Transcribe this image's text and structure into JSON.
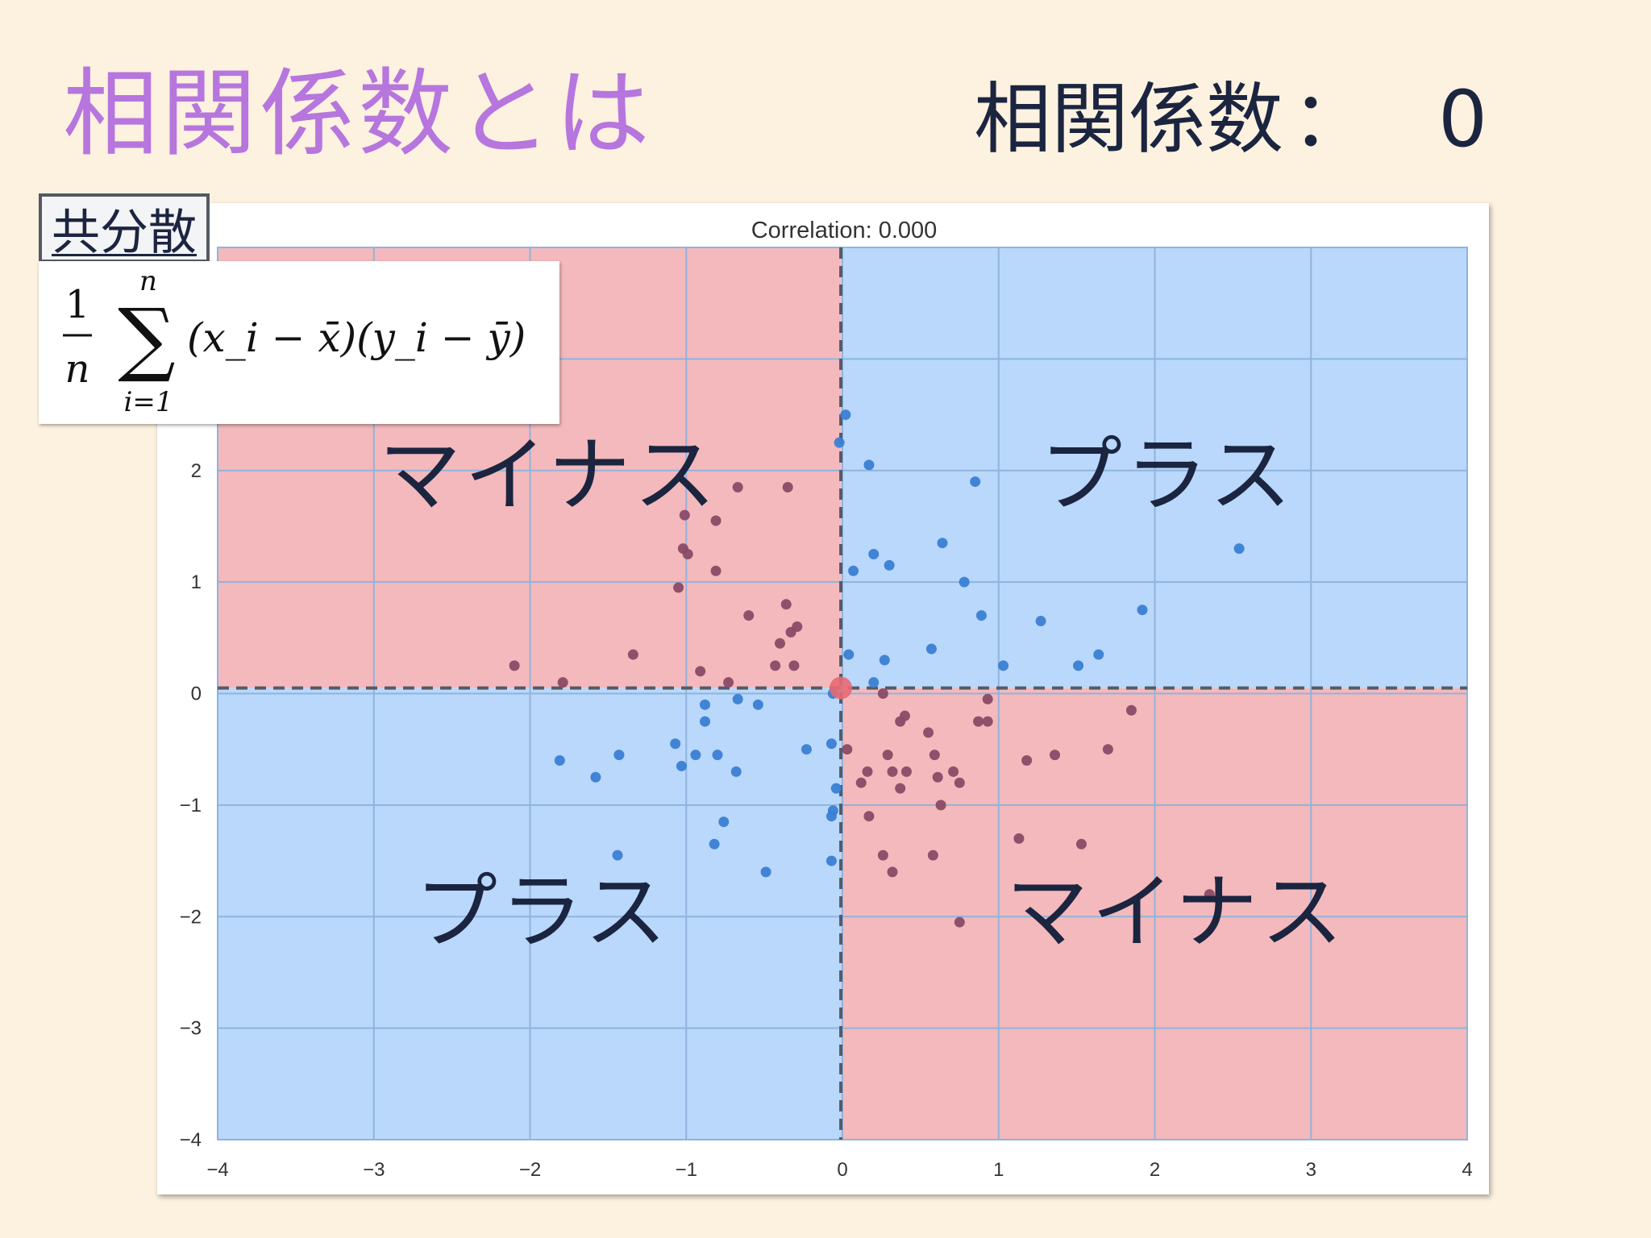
{
  "slide": {
    "title": "相関係数とは",
    "corr_heading_label": "相関係数",
    "corr_heading_sep": "：",
    "corr_heading_value": "0",
    "covariance_tag": "共分散"
  },
  "formula": {
    "frac_num": "1",
    "frac_den": "n",
    "sum_upper": "n",
    "sum_lower": "i=1",
    "sum_symbol": "∑",
    "body": "(x_i − x̄)(y_i − ȳ)"
  },
  "quadrant_labels": {
    "top_left": "マイナス",
    "top_right": "プラス",
    "bottom_left": "プラス",
    "bottom_right": "マイナス"
  },
  "colors": {
    "title": "#b676dd",
    "negative_quadrant": "#f4b9bc",
    "positive_quadrant": "#b9d8fb",
    "positive_point": "#3a7fd4",
    "negative_point": "#8a4a66",
    "center_point": "#e86a72"
  },
  "chart_data": {
    "type": "scatter",
    "title": "Correlation: 0.000",
    "xlabel": "",
    "ylabel": "",
    "xlim": [
      -4,
      4
    ],
    "ylim": [
      -4,
      4
    ],
    "x_ticks": [
      "−4",
      "−3",
      "−2",
      "−1",
      "0",
      "1",
      "2",
      "3",
      "4"
    ],
    "y_ticks": [
      "−4",
      "−3",
      "−2",
      "−1",
      "0",
      "1",
      "2"
    ],
    "grid": true,
    "mean": {
      "x": -0.01,
      "y": 0.05
    },
    "series": [
      {
        "quadrant": "positive",
        "points": [
          [
            0.02,
            2.5
          ],
          [
            -0.02,
            2.25
          ],
          [
            0.17,
            2.05
          ],
          [
            0.85,
            1.9
          ],
          [
            2.54,
            1.3
          ],
          [
            0.64,
            1.35
          ],
          [
            0.2,
            1.25
          ],
          [
            0.3,
            1.15
          ],
          [
            0.07,
            1.1
          ],
          [
            0.78,
            1.0
          ],
          [
            0.89,
            0.7
          ],
          [
            1.27,
            0.65
          ],
          [
            1.92,
            0.75
          ],
          [
            0.57,
            0.4
          ],
          [
            0.04,
            0.35
          ],
          [
            0.27,
            0.3
          ],
          [
            1.03,
            0.25
          ],
          [
            1.64,
            0.35
          ],
          [
            1.51,
            0.25
          ],
          [
            0.2,
            0.1
          ],
          [
            -0.06,
            0.0
          ],
          [
            -0.88,
            -0.1
          ],
          [
            -0.67,
            -0.05
          ],
          [
            -0.54,
            -0.1
          ],
          [
            -0.88,
            -0.25
          ],
          [
            -1.81,
            -0.6
          ],
          [
            -1.43,
            -0.55
          ],
          [
            -1.58,
            -0.75
          ],
          [
            -1.07,
            -0.45
          ],
          [
            -1.03,
            -0.65
          ],
          [
            -0.94,
            -0.55
          ],
          [
            -0.8,
            -0.55
          ],
          [
            -0.68,
            -0.7
          ],
          [
            -0.23,
            -0.5
          ],
          [
            -0.07,
            -0.45
          ],
          [
            -0.04,
            -0.85
          ],
          [
            -0.06,
            -1.05
          ],
          [
            -0.07,
            -1.1
          ],
          [
            -0.76,
            -1.15
          ],
          [
            -0.82,
            -1.35
          ],
          [
            -1.44,
            -1.45
          ],
          [
            -0.49,
            -1.6
          ],
          [
            -0.07,
            -1.5
          ]
        ]
      },
      {
        "quadrant": "negative",
        "points": [
          [
            -0.67,
            1.85
          ],
          [
            -0.35,
            1.85
          ],
          [
            -1.01,
            1.6
          ],
          [
            -0.81,
            1.55
          ],
          [
            -1.02,
            1.3
          ],
          [
            -0.99,
            1.25
          ],
          [
            -0.81,
            1.1
          ],
          [
            -1.05,
            0.95
          ],
          [
            -0.6,
            0.7
          ],
          [
            -0.36,
            0.8
          ],
          [
            -0.29,
            0.6
          ],
          [
            -0.33,
            0.55
          ],
          [
            -0.4,
            0.45
          ],
          [
            -1.34,
            0.35
          ],
          [
            -2.1,
            0.25
          ],
          [
            -0.43,
            0.25
          ],
          [
            -0.31,
            0.25
          ],
          [
            -0.91,
            0.2
          ],
          [
            -1.79,
            0.1
          ],
          [
            -0.73,
            0.1
          ],
          [
            0.26,
            0.0
          ],
          [
            0.93,
            -0.05
          ],
          [
            0.37,
            -0.25
          ],
          [
            0.4,
            -0.2
          ],
          [
            0.55,
            -0.35
          ],
          [
            0.87,
            -0.25
          ],
          [
            0.93,
            -0.25
          ],
          [
            1.85,
            -0.15
          ],
          [
            0.03,
            -0.5
          ],
          [
            0.29,
            -0.55
          ],
          [
            0.59,
            -0.55
          ],
          [
            0.16,
            -0.7
          ],
          [
            0.12,
            -0.8
          ],
          [
            0.32,
            -0.7
          ],
          [
            0.41,
            -0.7
          ],
          [
            0.61,
            -0.75
          ],
          [
            0.71,
            -0.7
          ],
          [
            0.75,
            -0.8
          ],
          [
            0.37,
            -0.85
          ],
          [
            0.17,
            -1.1
          ],
          [
            0.63,
            -1.0
          ],
          [
            1.18,
            -0.6
          ],
          [
            1.36,
            -0.55
          ],
          [
            1.7,
            -0.5
          ],
          [
            1.13,
            -1.3
          ],
          [
            1.53,
            -1.35
          ],
          [
            0.26,
            -1.45
          ],
          [
            0.32,
            -1.6
          ],
          [
            0.58,
            -1.45
          ],
          [
            0.75,
            -2.05
          ],
          [
            2.35,
            -1.8
          ]
        ]
      }
    ]
  }
}
